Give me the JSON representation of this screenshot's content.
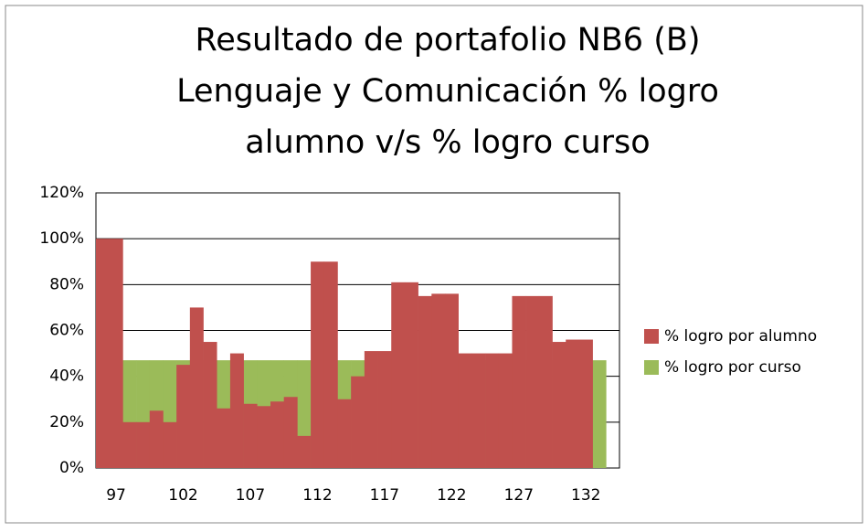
{
  "chart_data": {
    "type": "bar",
    "title_lines": [
      "Resultado de portafolio NB6 (B)",
      "Lenguaje y Comunicación % logro",
      "alumno v/s % logro curso"
    ],
    "categories": [
      null,
      "97",
      null,
      null,
      null,
      null,
      "102",
      null,
      null,
      null,
      null,
      "107",
      null,
      null,
      null,
      null,
      "112",
      null,
      null,
      null,
      null,
      "117",
      null,
      null,
      null,
      null,
      "122",
      null,
      null,
      null,
      null,
      "127",
      null,
      null,
      null,
      null,
      "132",
      null,
      null
    ],
    "series": [
      {
        "name": "% logro por curso",
        "color": "#9bbb59",
        "values": [
          0,
          0,
          47,
          47,
          47,
          47,
          47,
          47,
          47,
          47,
          47,
          47,
          47,
          47,
          47,
          47,
          47,
          47,
          47,
          47,
          47,
          47,
          47,
          47,
          47,
          47,
          47,
          47,
          47,
          47,
          47,
          47,
          47,
          47,
          47,
          47,
          47,
          47,
          0
        ]
      },
      {
        "name": "% logro por alumno",
        "color": "#c0504d",
        "values": [
          100,
          100,
          20,
          20,
          25,
          20,
          45,
          70,
          55,
          26,
          50,
          28,
          27,
          29,
          31,
          14,
          90,
          90,
          30,
          40,
          51,
          51,
          81,
          81,
          75,
          76,
          76,
          50,
          50,
          50,
          50,
          75,
          75,
          75,
          55,
          56,
          56,
          0,
          0
        ]
      }
    ],
    "legend_order": [
      1,
      0
    ],
    "ylim": [
      0,
      120
    ],
    "yticks": [
      {
        "value": 0,
        "label": "0%"
      },
      {
        "value": 20,
        "label": "20%"
      },
      {
        "value": 40,
        "label": "40%"
      },
      {
        "value": 60,
        "label": "60%"
      },
      {
        "value": 80,
        "label": "80%"
      },
      {
        "value": 100,
        "label": "100%"
      },
      {
        "value": 120,
        "label": "120%"
      }
    ],
    "grid": true
  }
}
